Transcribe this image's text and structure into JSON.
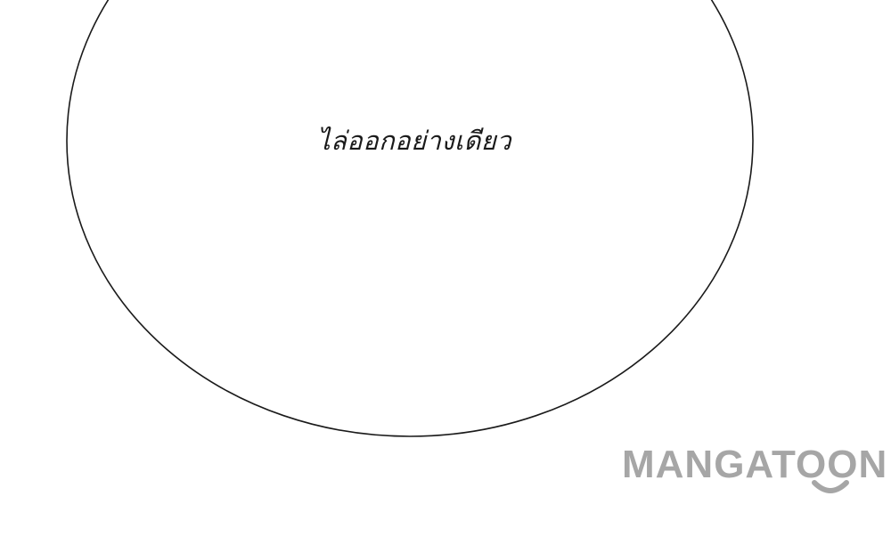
{
  "bubble": {
    "text": "ไล่ออกอย่างเดียว"
  },
  "watermark": {
    "text": "MANGATOON",
    "icon": "smile-icon",
    "color": "#a6a6a6"
  }
}
